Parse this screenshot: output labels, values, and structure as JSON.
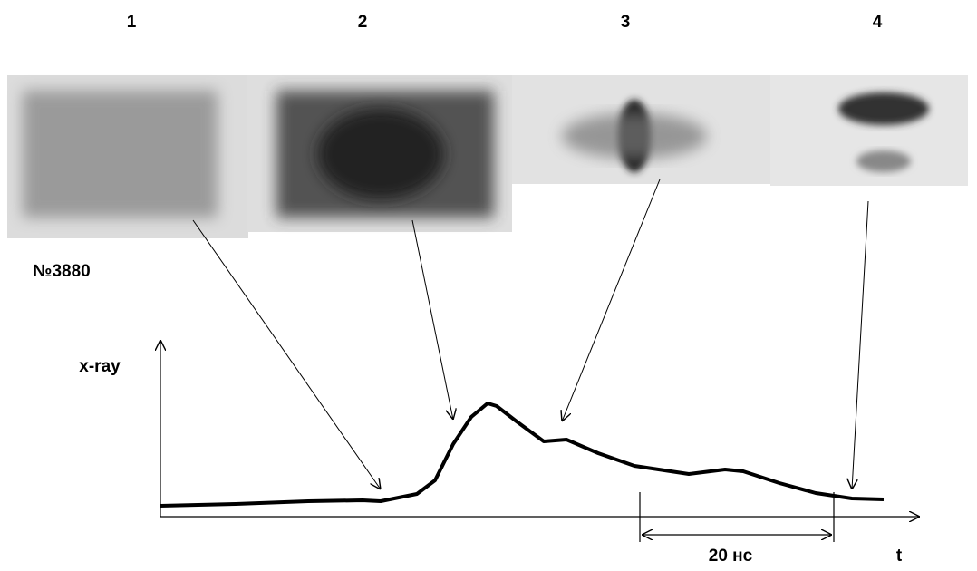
{
  "frame_labels": [
    "1",
    "2",
    "3",
    "4"
  ],
  "shot": "№3880",
  "y_axis_label": "x-ray",
  "x_axis_label": "t",
  "scale_bar": "20 нс"
}
